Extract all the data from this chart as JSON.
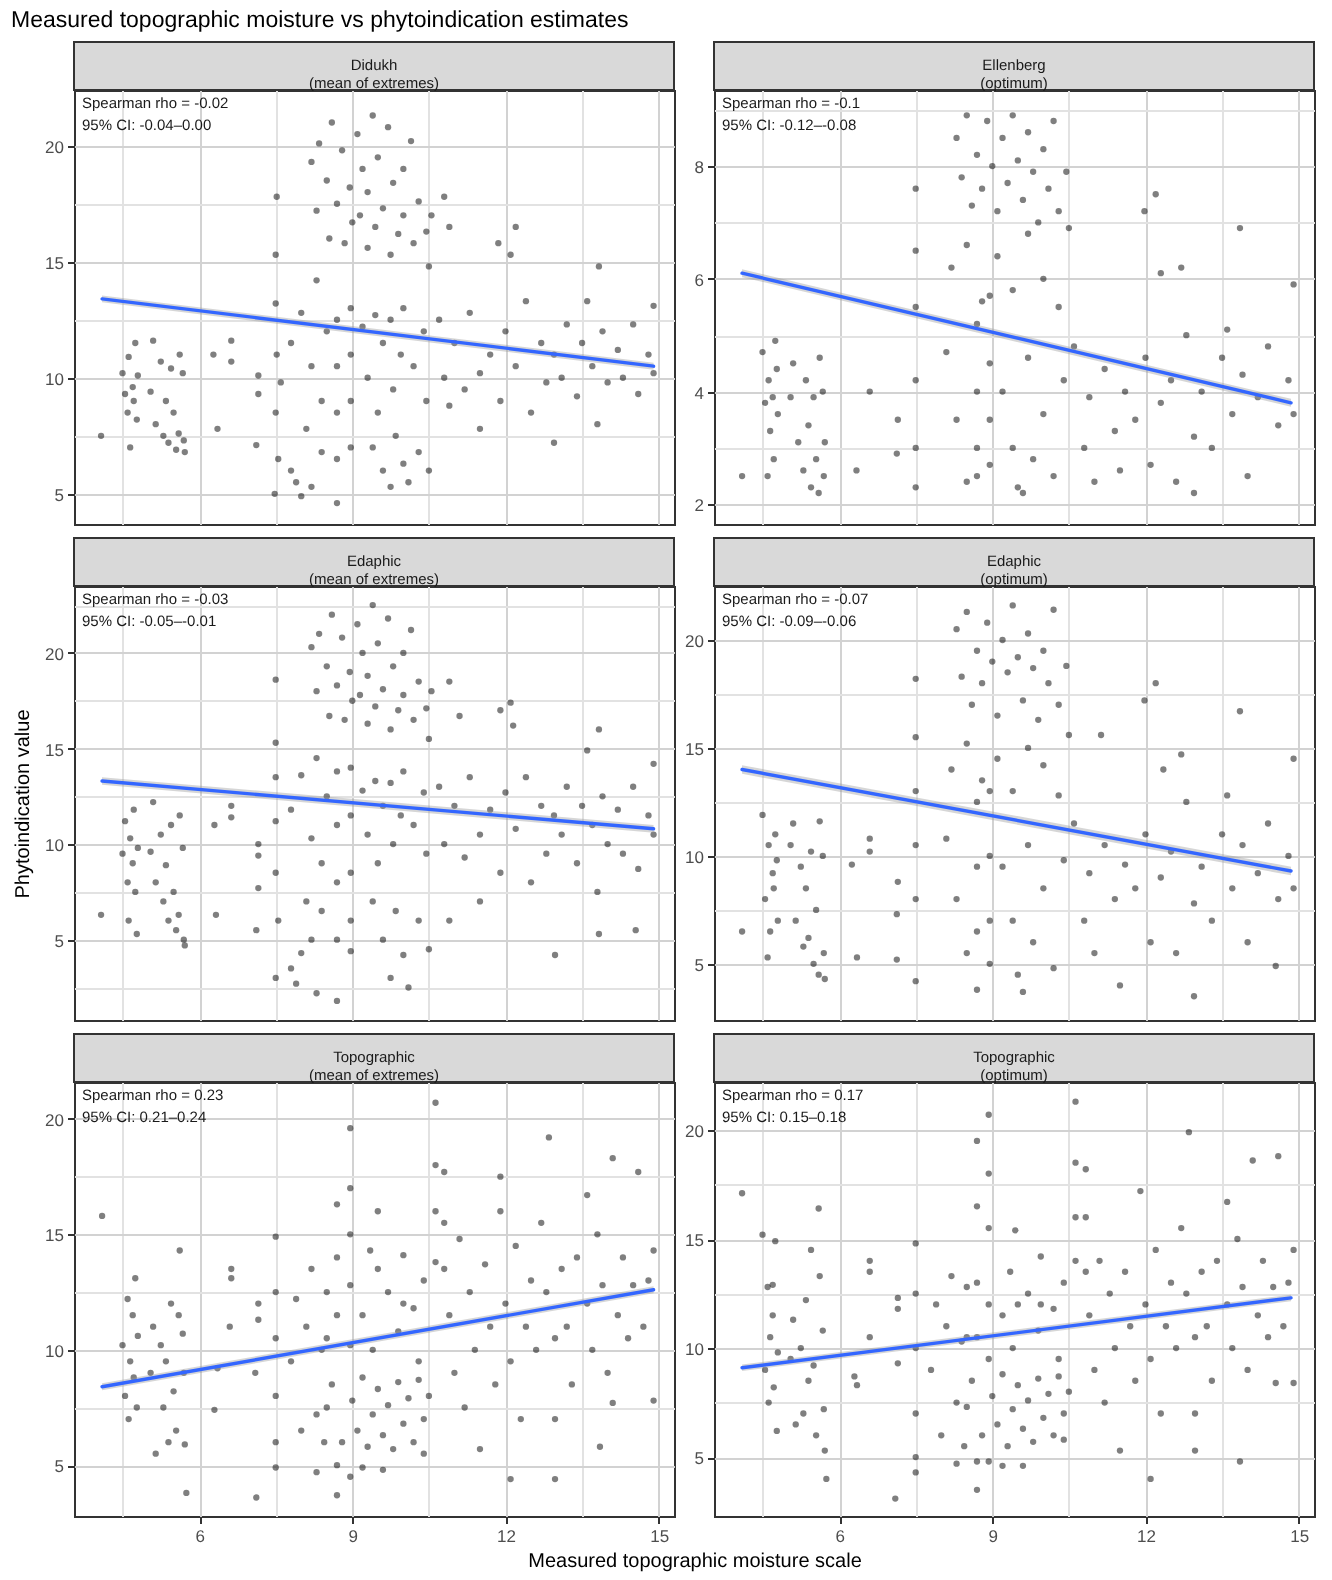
{
  "chart_data": [
    {
      "type": "scatter",
      "title": "Measured topographic moisture vs phytoindication estimates",
      "subtitle": "Didukh\n(mean of extremes)",
      "annotations": [
        "Spearman rho = -0.02",
        "95% CI: -0.04–0.00"
      ],
      "xlim": [
        3.55,
        15.3
      ],
      "xticks": [
        {
          "value": 4.5,
          "label": null
        },
        6,
        {
          "value": 7.5,
          "label": null
        },
        9,
        {
          "value": 10.5,
          "label": null
        },
        12,
        {
          "value": 13.5,
          "label": null
        },
        15
      ],
      "ylim": [
        3.7,
        22.4
      ],
      "yticks": [
        5,
        {
          "value": 7.5,
          "label": null
        },
        10,
        {
          "value": 12.5,
          "label": null
        },
        15,
        {
          "value": 17.5,
          "label": null
        },
        20
      ],
      "grid": true,
      "tick_labels": "y",
      "series": [
        {
          "type": "scatter",
          "color": "#000000",
          "marker": "circle",
          "x": [
            4.5,
            4.55,
            4.6,
            4.62,
            4.65,
            4.7,
            4.72,
            4.75,
            4.8,
            4.78,
            5.05,
            5.1,
            5.15,
            5.25,
            5.3,
            5.35,
            5.4,
            5.45,
            5.5,
            5.55,
            5.6,
            5.62,
            5.7,
            5.72,
            5.68,
            4.08,
            6.36,
            6.28,
            6.63,
            6.63,
            7.16,
            7.16,
            7.12,
            7.52,
            7.5,
            7.5,
            7.52,
            7.5,
            7.48,
            7.6,
            7.55,
            7.8,
            7.9,
            8.0,
            8.1,
            8.2,
            7.8,
            8.0,
            8.2,
            8.3,
            8.4,
            8.5,
            8.4,
            8.2,
            8.3,
            8.35,
            8.5,
            8.55,
            8.6,
            8.7,
            8.8,
            8.85,
            8.95,
            9.0,
            9.1,
            9.15,
            9.2,
            9.3,
            9.3,
            9.4,
            9.45,
            9.5,
            9.6,
            9.7,
            9.75,
            9.8,
            9.9,
            10.0,
            10.0,
            10.15,
            10.2,
            10.3,
            10.45,
            10.5,
            10.55,
            8.7,
            8.7,
            8.7,
            8.7,
            8.7,
            8.97,
            8.97,
            8.97,
            8.97,
            9.2,
            9.3,
            9.45,
            9.5,
            9.6,
            9.75,
            9.8,
            9.95,
            10.0,
            10.2,
            10.4,
            10.45,
            9.4,
            9.6,
            9.75,
            9.85,
            10.0,
            10.1,
            10.3,
            10.5,
            10.7,
            10.8,
            10.9,
            11.0,
            11.2,
            11.3,
            11.5,
            11.5,
            11.7,
            11.9,
            12.0,
            12.2,
            12.4,
            12.5,
            12.7,
            12.8,
            12.95,
            12.95,
            13.1,
            13.2,
            13.4,
            13.5,
            13.6,
            13.7,
            13.8,
            13.9,
            14.0,
            14.2,
            14.3,
            14.5,
            14.6,
            14.8,
            14.9,
            14.9,
            10.8,
            10.9,
            11.86,
            12.2,
            12.1,
            13.83
          ],
          "values": [
            10.2,
            9.3,
            8.5,
            10.9,
            7.0,
            9.6,
            9.0,
            11.5,
            10.1,
            8.2,
            9.4,
            11.6,
            8.0,
            10.7,
            7.5,
            9.0,
            7.2,
            10.4,
            8.5,
            6.9,
            7.6,
            11.0,
            7.3,
            6.8,
            10.2,
            7.5,
            7.8,
            11.0,
            11.6,
            10.7,
            10.1,
            9.3,
            7.1,
            17.8,
            15.3,
            13.2,
            11.0,
            8.5,
            5.0,
            9.8,
            6.5,
            6.0,
            5.5,
            4.9,
            7.8,
            5.3,
            11.5,
            12.8,
            10.5,
            14.2,
            9.0,
            12.0,
            6.8,
            19.3,
            17.2,
            20.1,
            18.5,
            16.0,
            21.0,
            17.5,
            19.8,
            15.8,
            18.2,
            16.7,
            20.5,
            17.0,
            19.0,
            15.6,
            18.0,
            21.3,
            16.5,
            19.5,
            17.3,
            20.8,
            15.3,
            18.4,
            16.2,
            19.0,
            17.0,
            20.2,
            15.8,
            17.6,
            16.3,
            14.8,
            17.0,
            12.5,
            10.5,
            8.5,
            6.5,
            4.6,
            13.0,
            11.0,
            9.0,
            7.0,
            12.2,
            10.0,
            12.7,
            8.5,
            11.5,
            12.5,
            9.5,
            11.0,
            13.0,
            10.5,
            12.0,
            9.0,
            7.0,
            6.0,
            5.3,
            7.5,
            6.3,
            5.5,
            6.8,
            6.0,
            12.5,
            10.0,
            8.8,
            11.5,
            9.5,
            12.8,
            10.2,
            7.8,
            11.0,
            9.0,
            12.0,
            10.5,
            13.3,
            8.5,
            11.5,
            9.8,
            11.0,
            7.2,
            10.0,
            12.3,
            9.2,
            11.5,
            13.3,
            10.5,
            8.0,
            12.0,
            9.8,
            11.2,
            10.0,
            12.3,
            9.3,
            11.0,
            13.1,
            10.2,
            17.8,
            16.5,
            15.8,
            16.5,
            15.3,
            14.8
          ]
        },
        {
          "type": "line",
          "color": "#3366ff",
          "x": [
            4.1,
            14.9
          ],
          "values": [
            13.4,
            10.5
          ],
          "lower": [
            13.25,
            10.35
          ],
          "upper": [
            13.55,
            10.65
          ]
        }
      ]
    },
    {
      "type": "scatter",
      "subtitle": "Ellenberg\n(optimum)",
      "annotations": [
        "Spearman rho = -0.1",
        "95% CI: -0.12–-0.08"
      ],
      "xlim": [
        3.55,
        15.3
      ],
      "xticks": [
        {
          "value": 4.5,
          "label": null
        },
        6,
        {
          "value": 7.5,
          "label": null
        },
        9,
        {
          "value": 10.5,
          "label": null
        },
        12,
        {
          "value": 13.5,
          "label": null
        },
        15
      ],
      "ylim": [
        1.65,
        9.35
      ],
      "yticks": [
        2,
        {
          "value": 3,
          "label": null
        },
        4,
        {
          "value": 5,
          "label": null
        },
        6,
        {
          "value": 7,
          "label": null
        },
        8,
        {
          "value": 9,
          "label": null
        }
      ],
      "grid": true,
      "tick_labels": "y",
      "series": [
        {
          "type": "scatter",
          "color": "#000000",
          "marker": "circle",
          "x": [
            4.5,
            4.55,
            4.6,
            4.62,
            4.65,
            4.7,
            4.72,
            4.75,
            4.8,
            4.78,
            5.05,
            5.1,
            5.2,
            5.3,
            5.35,
            5.4,
            5.45,
            5.5,
            5.55,
            5.6,
            5.62,
            5.7,
            5.72,
            5.68,
            4.1,
            6.34,
            6.6,
            7.15,
            7.13,
            7.5,
            7.5,
            7.5,
            7.5,
            7.5,
            7.5,
            8.3,
            8.4,
            8.5,
            8.6,
            8.7,
            8.8,
            8.9,
            9.0,
            9.1,
            9.2,
            9.3,
            9.4,
            9.5,
            9.6,
            9.7,
            9.8,
            9.9,
            10.0,
            10.1,
            10.2,
            10.3,
            10.45,
            10.5,
            8.2,
            8.5,
            8.8,
            9.1,
            9.4,
            9.7,
            10.0,
            10.3,
            8.7,
            8.7,
            8.7,
            8.7,
            8.95,
            8.95,
            8.95,
            8.95,
            8.1,
            8.3,
            8.5,
            9.2,
            9.4,
            9.5,
            9.6,
            9.7,
            9.8,
            10.0,
            10.2,
            10.4,
            10.6,
            10.8,
            10.9,
            11.0,
            11.2,
            11.4,
            11.5,
            11.6,
            11.8,
            12.0,
            12.1,
            12.3,
            12.5,
            12.6,
            12.8,
            12.95,
            12.95,
            13.1,
            13.3,
            13.5,
            13.6,
            13.7,
            13.9,
            14.0,
            14.2,
            14.4,
            14.6,
            14.8,
            14.9,
            14.9,
            11.98,
            12.2,
            12.7,
            13.85,
            12.3
          ],
          "values": [
            4.7,
            3.8,
            2.5,
            4.2,
            3.3,
            3.9,
            2.8,
            4.9,
            3.6,
            4.4,
            3.9,
            4.5,
            3.1,
            2.6,
            4.2,
            3.4,
            2.3,
            3.9,
            2.8,
            2.2,
            4.6,
            2.5,
            3.1,
            4.0,
            2.5,
            2.6,
            4.0,
            3.5,
            2.9,
            7.6,
            6.5,
            5.5,
            4.2,
            3.0,
            2.3,
            8.5,
            7.8,
            8.9,
            7.3,
            8.2,
            7.6,
            8.8,
            8.0,
            7.2,
            8.5,
            7.7,
            8.9,
            8.1,
            7.4,
            8.6,
            7.9,
            7.0,
            8.3,
            7.6,
            8.8,
            7.2,
            7.9,
            6.9,
            6.2,
            6.6,
            5.6,
            6.4,
            5.8,
            6.8,
            6.0,
            5.5,
            5.2,
            4.0,
            3.0,
            2.5,
            5.7,
            4.5,
            3.5,
            2.7,
            4.7,
            3.5,
            2.4,
            4.0,
            3.0,
            2.3,
            2.2,
            4.6,
            2.8,
            3.6,
            2.5,
            4.2,
            4.8,
            3.0,
            3.9,
            2.4,
            4.4,
            3.3,
            2.6,
            4.0,
            3.5,
            4.6,
            2.7,
            3.8,
            4.2,
            2.4,
            5.0,
            3.2,
            2.2,
            4.0,
            3.0,
            4.6,
            5.1,
            3.6,
            4.3,
            2.5,
            3.9,
            4.8,
            3.4,
            4.2,
            5.9,
            3.6,
            7.2,
            7.5,
            6.2,
            6.9,
            6.1
          ]
        },
        {
          "type": "line",
          "color": "#3366ff",
          "x": [
            4.1,
            14.85
          ],
          "values": [
            6.1,
            3.8
          ],
          "lower": [
            6.03,
            3.73
          ],
          "upper": [
            6.17,
            3.87
          ]
        }
      ]
    },
    {
      "type": "scatter",
      "subtitle": "Edaphic\n(mean of extremes)",
      "ylabel": "Phytoindication value",
      "annotations": [
        "Spearman rho = -0.03",
        "95% CI: -0.05–-0.01"
      ],
      "xlim": [
        3.55,
        15.3
      ],
      "xticks": [
        {
          "value": 4.5,
          "label": null
        },
        6,
        {
          "value": 7.5,
          "label": null
        },
        9,
        {
          "value": 10.5,
          "label": null
        },
        12,
        {
          "value": 13.5,
          "label": null
        },
        15
      ],
      "ylim": [
        0.8,
        23.5
      ],
      "yticks": [
        {
          "value": 2.5,
          "label": null
        },
        5,
        {
          "value": 7.5,
          "label": null
        },
        10,
        {
          "value": 12.5,
          "label": null
        },
        15,
        {
          "value": 17.5,
          "label": null
        },
        20,
        {
          "value": 22.5,
          "label": null
        }
      ],
      "grid": true,
      "tick_labels": "y",
      "series": [
        {
          "type": "scatter",
          "color": "#000000",
          "marker": "circle",
          "x": [
            4.5,
            4.55,
            4.6,
            4.62,
            4.65,
            4.7,
            4.72,
            4.75,
            4.8,
            4.78,
            5.05,
            5.1,
            5.15,
            5.25,
            5.3,
            5.35,
            5.4,
            5.45,
            5.5,
            5.55,
            5.6,
            5.62,
            5.7,
            5.72,
            5.68,
            4.08,
            6.33,
            6.3,
            6.63,
            6.63,
            7.16,
            7.16,
            7.12,
            7.16,
            7.5,
            7.5,
            7.5,
            7.5,
            7.5,
            7.5,
            7.55,
            7.8,
            7.9,
            8.0,
            8.1,
            8.2,
            7.8,
            8.0,
            8.2,
            8.3,
            8.4,
            8.5,
            8.4,
            8.3,
            8.2,
            8.3,
            8.35,
            8.5,
            8.55,
            8.6,
            8.7,
            8.8,
            8.85,
            8.95,
            9.0,
            9.1,
            9.15,
            9.2,
            9.3,
            9.3,
            9.4,
            9.45,
            9.5,
            9.6,
            9.7,
            9.75,
            9.8,
            9.9,
            10.0,
            10.0,
            10.15,
            10.2,
            10.3,
            10.45,
            10.5,
            10.55,
            8.7,
            8.7,
            8.7,
            8.7,
            8.7,
            8.97,
            8.97,
            8.97,
            8.97,
            8.97,
            9.2,
            9.3,
            9.45,
            9.5,
            9.6,
            9.75,
            9.8,
            9.95,
            10.0,
            10.2,
            10.4,
            10.45,
            9.4,
            9.6,
            9.75,
            9.85,
            10.0,
            10.1,
            10.3,
            10.5,
            10.7,
            10.8,
            10.9,
            11.0,
            11.2,
            11.3,
            11.5,
            11.5,
            11.7,
            11.9,
            12.0,
            12.2,
            12.4,
            12.5,
            12.7,
            12.8,
            12.95,
            12.97,
            13.1,
            13.2,
            13.4,
            13.5,
            13.6,
            13.7,
            13.8,
            13.9,
            14.0,
            14.2,
            14.3,
            14.5,
            14.6,
            14.8,
            14.9,
            14.9,
            13.83,
            14.55,
            10.9,
            11.1,
            11.9,
            12.1,
            12.15,
            13.83
          ],
          "values": [
            9.5,
            11.2,
            8.0,
            6.0,
            10.3,
            9.0,
            11.8,
            7.5,
            9.8,
            5.3,
            9.6,
            12.2,
            8.0,
            10.5,
            7.0,
            8.9,
            6.0,
            11.0,
            7.5,
            5.5,
            6.3,
            11.5,
            5.0,
            4.7,
            9.8,
            6.3,
            6.3,
            11.0,
            12.0,
            11.4,
            10.0,
            9.4,
            5.5,
            7.7,
            18.6,
            15.3,
            13.5,
            11.2,
            8.5,
            3.0,
            6.0,
            3.5,
            2.7,
            4.3,
            7.0,
            5.0,
            11.8,
            13.6,
            10.3,
            14.5,
            9.0,
            12.5,
            6.5,
            2.2,
            20.3,
            18.0,
            21.0,
            19.3,
            16.7,
            22.0,
            18.3,
            20.8,
            16.5,
            19.0,
            17.5,
            21.5,
            17.8,
            20.0,
            16.3,
            18.8,
            22.5,
            17.2,
            20.5,
            18.1,
            21.8,
            16.0,
            19.3,
            17.0,
            20.0,
            17.8,
            21.2,
            16.5,
            18.5,
            17.1,
            15.5,
            18.0,
            13.8,
            11.0,
            8.0,
            5.0,
            1.8,
            14.0,
            11.5,
            8.5,
            6.0,
            4.4,
            12.8,
            10.5,
            13.3,
            9.0,
            12.0,
            13.2,
            10.0,
            11.5,
            13.8,
            11.0,
            12.7,
            9.5,
            7.0,
            5.0,
            3.0,
            6.5,
            4.2,
            2.5,
            6.0,
            4.5,
            13.0,
            10.0,
            6.0,
            12.0,
            9.3,
            13.5,
            10.5,
            7.0,
            11.8,
            8.5,
            12.7,
            10.8,
            13.5,
            8.0,
            12.0,
            9.5,
            11.5,
            4.2,
            10.5,
            13.0,
            9.0,
            12.0,
            14.9,
            11.0,
            7.5,
            12.5,
            10.0,
            11.8,
            9.5,
            13.0,
            8.7,
            11.5,
            14.2,
            10.5,
            5.3,
            5.5,
            18.5,
            16.7,
            17.0,
            17.4,
            16.2,
            16.0
          ]
        },
        {
          "type": "line",
          "color": "#3366ff",
          "x": [
            4.1,
            14.9
          ],
          "values": [
            13.3,
            10.8
          ],
          "lower": [
            13.1,
            10.6
          ],
          "upper": [
            13.5,
            11.0
          ]
        }
      ]
    },
    {
      "type": "scatter",
      "subtitle": "Edaphic\n(optimum)",
      "annotations": [
        "Spearman rho = -0.07",
        "95% CI: -0.09–-0.06"
      ],
      "xlim": [
        3.55,
        15.3
      ],
      "xticks": [
        {
          "value": 4.5,
          "label": null
        },
        6,
        {
          "value": 7.5,
          "label": null
        },
        9,
        {
          "value": 10.5,
          "label": null
        },
        12,
        {
          "value": 13.5,
          "label": null
        },
        15
      ],
      "ylim": [
        2.4,
        22.5
      ],
      "yticks": [
        5,
        {
          "value": 7.5,
          "label": null
        },
        10,
        {
          "value": 12.5,
          "label": null
        },
        15,
        {
          "value": 17.5,
          "label": null
        },
        20
      ],
      "grid": true,
      "tick_labels": "y",
      "series": [
        {
          "type": "scatter",
          "color": "#000000",
          "marker": "circle",
          "x": [
            4.5,
            4.55,
            4.6,
            4.62,
            4.65,
            4.7,
            4.72,
            4.75,
            4.8,
            4.78,
            5.05,
            5.1,
            5.15,
            5.25,
            5.3,
            5.35,
            5.4,
            5.45,
            5.5,
            5.55,
            5.6,
            5.62,
            5.7,
            5.72,
            5.68,
            4.1,
            6.35,
            6.25,
            6.6,
            6.6,
            7.15,
            7.13,
            7.13,
            7.5,
            7.5,
            7.5,
            7.5,
            7.5,
            7.5,
            8.3,
            8.4,
            8.5,
            8.6,
            8.7,
            8.8,
            8.9,
            9.0,
            9.1,
            9.2,
            9.3,
            9.4,
            9.5,
            9.6,
            9.7,
            9.8,
            9.9,
            10.0,
            10.1,
            10.2,
            10.3,
            10.45,
            10.5,
            8.2,
            8.5,
            8.8,
            9.1,
            9.4,
            9.7,
            10.0,
            10.3,
            8.7,
            8.7,
            8.7,
            8.7,
            8.95,
            8.95,
            8.95,
            8.95,
            8.1,
            8.3,
            8.5,
            9.2,
            9.4,
            9.5,
            9.6,
            9.7,
            9.8,
            10.0,
            10.2,
            10.4,
            10.6,
            10.8,
            10.9,
            11.0,
            11.2,
            11.4,
            11.5,
            11.6,
            11.8,
            12.0,
            12.1,
            12.3,
            12.5,
            12.6,
            12.8,
            12.95,
            12.95,
            13.1,
            13.3,
            13.5,
            13.6,
            13.7,
            13.9,
            14.0,
            14.2,
            14.4,
            14.6,
            14.8,
            14.9,
            14.9,
            14.55,
            11.98,
            12.2,
            12.7,
            13.85,
            12.35,
            11.13
          ],
          "values": [
            11.9,
            8.0,
            5.3,
            10.5,
            6.5,
            9.2,
            8.5,
            11.0,
            7.0,
            9.8,
            10.5,
            11.5,
            7.0,
            9.5,
            5.8,
            8.5,
            6.2,
            10.2,
            5.0,
            7.5,
            4.5,
            11.6,
            5.5,
            4.3,
            10.0,
            6.5,
            5.3,
            9.6,
            10.8,
            10.2,
            8.8,
            7.3,
            5.2,
            18.2,
            15.5,
            13.0,
            10.5,
            8.0,
            4.2,
            20.5,
            18.3,
            21.3,
            17.0,
            19.5,
            18.0,
            20.8,
            19.0,
            16.5,
            20.0,
            18.5,
            21.6,
            19.2,
            17.2,
            20.3,
            18.7,
            16.3,
            19.5,
            18.0,
            21.4,
            17.0,
            18.8,
            15.6,
            14.0,
            15.2,
            13.5,
            14.5,
            13.0,
            15.0,
            14.2,
            12.8,
            12.5,
            9.5,
            6.5,
            3.8,
            13.0,
            10.0,
            7.0,
            5.0,
            10.8,
            8.0,
            5.5,
            9.5,
            7.0,
            4.5,
            3.7,
            10.5,
            6.0,
            8.5,
            4.8,
            9.8,
            11.5,
            7.0,
            9.2,
            5.5,
            10.5,
            8.0,
            4.0,
            9.6,
            8.5,
            11.0,
            6.0,
            9.0,
            10.2,
            5.5,
            12.5,
            7.8,
            3.5,
            9.5,
            7.0,
            11.0,
            12.8,
            8.5,
            10.5,
            6.0,
            9.2,
            11.5,
            8.0,
            10.0,
            14.5,
            8.5,
            4.9,
            17.2,
            18.0,
            14.7,
            16.7,
            14.0,
            15.6
          ]
        },
        {
          "type": "line",
          "color": "#3366ff",
          "x": [
            4.1,
            14.85
          ],
          "values": [
            14.0,
            9.3
          ],
          "lower": [
            13.8,
            9.1
          ],
          "upper": [
            14.2,
            9.5
          ]
        }
      ]
    },
    {
      "type": "scatter",
      "subtitle": "Topographic\n(mean of extremes)",
      "xlabel": "Measured topographic moisture scale",
      "annotations": [
        "Spearman rho = 0.23",
        "95% CI: 0.21–0.24"
      ],
      "xlim": [
        3.55,
        15.3
      ],
      "xticks": [
        {
          "value": 4.5,
          "label": null
        },
        6,
        {
          "value": 7.5,
          "label": null
        },
        9,
        {
          "value": 10.5,
          "label": null
        },
        12,
        {
          "value": 13.5,
          "label": null
        },
        15
      ],
      "ylim": [
        2.8,
        21.6
      ],
      "yticks": [
        5,
        {
          "value": 7.5,
          "label": null
        },
        10,
        {
          "value": 12.5,
          "label": null
        },
        15,
        {
          "value": 17.5,
          "label": null
        },
        20
      ],
      "grid": true,
      "series": [
        {
          "type": "scatter",
          "color": "#000000",
          "marker": "circle",
          "x": [
            4.5,
            4.55,
            4.6,
            4.62,
            4.65,
            4.7,
            4.72,
            4.75,
            4.8,
            4.78,
            5.05,
            5.1,
            5.15,
            5.25,
            5.3,
            5.35,
            5.4,
            5.45,
            5.5,
            5.55,
            5.6,
            5.62,
            5.7,
            5.72,
            5.68,
            5.75,
            4.1,
            6.36,
            6.3,
            6.63,
            6.63,
            6.6,
            7.12,
            7.16,
            7.16,
            7.1,
            7.5,
            7.5,
            7.5,
            7.5,
            7.5,
            7.5,
            7.8,
            7.9,
            8.0,
            8.1,
            8.2,
            8.3,
            8.4,
            8.5,
            8.45,
            8.3,
            8.5,
            8.6,
            8.8,
            9.0,
            9.1,
            9.2,
            9.3,
            9.4,
            9.5,
            9.6,
            9.7,
            9.8,
            9.9,
            10.0,
            10.1,
            10.2,
            10.3,
            10.4,
            10.5,
            10.4,
            9.2,
            9.6,
            8.7,
            8.7,
            8.7,
            8.7,
            8.7,
            8.96,
            8.96,
            8.96,
            8.96,
            8.96,
            8.96,
            9.5,
            9.5,
            9.35,
            10.0,
            10.0,
            10.63,
            10.63,
            10.63,
            10.63,
            10.8,
            10.8,
            10.8,
            8.5,
            9.2,
            9.4,
            9.7,
            9.9,
            10.2,
            10.4,
            10.3,
            10.9,
            11.0,
            11.1,
            11.2,
            11.3,
            11.4,
            11.5,
            11.6,
            11.7,
            11.8,
            11.9,
            12.0,
            12.1,
            12.2,
            12.3,
            12.4,
            12.5,
            12.6,
            12.7,
            12.8,
            12.85,
            12.97,
            12.97,
            12.97,
            13.1,
            13.2,
            13.3,
            13.4,
            13.6,
            13.6,
            13.7,
            13.8,
            13.9,
            14.0,
            14.1,
            14.2,
            14.3,
            14.4,
            14.5,
            14.6,
            14.7,
            14.8,
            14.9,
            14.9,
            13.85,
            12.1,
            11.9,
            14.1
          ],
          "values": [
            10.2,
            8.0,
            12.2,
            7.0,
            9.5,
            11.5,
            8.8,
            13.1,
            10.6,
            7.5,
            9.0,
            11.0,
            5.5,
            10.2,
            7.5,
            9.5,
            6.0,
            12.0,
            8.2,
            6.5,
            11.5,
            14.3,
            9.0,
            5.9,
            10.7,
            3.8,
            15.8,
            9.2,
            7.4,
            13.5,
            13.1,
            11.0,
            3.6,
            12.0,
            11.3,
            9.0,
            14.9,
            12.5,
            10.5,
            8.0,
            6.0,
            4.9,
            9.5,
            12.2,
            6.5,
            11.0,
            13.5,
            7.2,
            10.0,
            12.5,
            6.0,
            4.7,
            7.5,
            8.5,
            6.0,
            7.8,
            6.5,
            8.8,
            5.8,
            7.2,
            8.3,
            6.3,
            7.6,
            5.7,
            8.6,
            6.8,
            7.9,
            6.0,
            8.7,
            7.0,
            8.0,
            5.5,
            4.9,
            4.8,
            16.3,
            14.0,
            11.5,
            5.0,
            3.7,
            19.6,
            17.0,
            15.0,
            12.8,
            10.2,
            4.5,
            16.0,
            13.5,
            14.3,
            14.1,
            12.0,
            20.7,
            18.0,
            16.0,
            13.8,
            17.7,
            15.5,
            13.5,
            10.5,
            11.5,
            10.0,
            12.5,
            10.8,
            11.8,
            13.0,
            9.5,
            11.5,
            9.0,
            14.8,
            7.5,
            12.5,
            10.0,
            5.7,
            13.7,
            11.0,
            8.5,
            16.0,
            12.0,
            9.5,
            14.5,
            7.0,
            11.0,
            13.0,
            10.0,
            15.5,
            12.5,
            19.2,
            10.5,
            7.0,
            4.4,
            13.5,
            11.0,
            8.5,
            14.0,
            16.7,
            12.0,
            10.0,
            15.0,
            12.8,
            9.0,
            18.3,
            11.5,
            14.0,
            10.5,
            12.8,
            17.7,
            11.0,
            13.0,
            14.3,
            7.8,
            5.8,
            4.4,
            17.5,
            7.7
          ]
        },
        {
          "type": "line",
          "color": "#3366ff",
          "x": [
            4.1,
            14.9
          ],
          "values": [
            8.4,
            12.6
          ],
          "lower": [
            8.25,
            12.45
          ],
          "upper": [
            8.55,
            12.75
          ]
        }
      ]
    },
    {
      "type": "scatter",
      "subtitle": "Topographic\n(optimum)",
      "annotations": [
        "Spearman rho = 0.17",
        "95% CI: 0.15–0.18"
      ],
      "xlim": [
        3.55,
        15.3
      ],
      "xticks": [
        {
          "value": 4.5,
          "label": null
        },
        6,
        {
          "value": 7.5,
          "label": null
        },
        9,
        {
          "value": 10.5,
          "label": null
        },
        12,
        {
          "value": 13.5,
          "label": null
        },
        15
      ],
      "ylim": [
        2.3,
        22.2
      ],
      "yticks": [
        5,
        {
          "value": 7.5,
          "label": null
        },
        10,
        {
          "value": 12.5,
          "label": null
        },
        15,
        {
          "value": 17.5,
          "label": null
        },
        20
      ],
      "grid": true,
      "series": [
        {
          "type": "scatter",
          "color": "#000000",
          "marker": "circle",
          "x": [
            4.5,
            4.55,
            4.6,
            4.62,
            4.65,
            4.7,
            4.72,
            4.75,
            4.8,
            4.78,
            4.7,
            5.05,
            5.1,
            5.15,
            5.25,
            5.3,
            5.35,
            5.4,
            5.45,
            5.5,
            5.55,
            5.6,
            5.62,
            5.7,
            5.75,
            5.68,
            5.72,
            4.1,
            6.35,
            6.3,
            6.6,
            6.6,
            6.6,
            7.1,
            7.15,
            7.15,
            7.15,
            7.5,
            7.5,
            7.5,
            7.5,
            7.5,
            7.5,
            7.8,
            7.9,
            8.0,
            8.1,
            8.2,
            8.3,
            8.4,
            8.5,
            8.45,
            8.3,
            8.5,
            8.6,
            8.8,
            9.0,
            9.1,
            9.2,
            9.3,
            9.4,
            9.5,
            9.6,
            9.7,
            9.8,
            9.9,
            10.0,
            10.1,
            10.2,
            10.3,
            10.4,
            10.5,
            10.4,
            9.2,
            9.6,
            8.7,
            8.7,
            8.7,
            8.7,
            8.7,
            8.7,
            8.93,
            8.93,
            8.93,
            8.93,
            8.93,
            8.93,
            9.45,
            9.35,
            9.5,
            9.95,
            9.95,
            10.63,
            10.63,
            10.63,
            10.63,
            10.83,
            10.83,
            10.83,
            8.5,
            9.2,
            9.4,
            9.7,
            9.9,
            10.2,
            10.4,
            10.3,
            10.9,
            11.0,
            11.1,
            11.2,
            11.3,
            11.4,
            11.5,
            11.6,
            11.7,
            11.8,
            11.9,
            12.0,
            12.1,
            12.2,
            12.3,
            12.4,
            12.5,
            12.6,
            12.7,
            12.8,
            12.85,
            12.97,
            12.97,
            12.97,
            13.1,
            13.2,
            13.3,
            13.4,
            13.6,
            13.6,
            13.7,
            13.8,
            13.9,
            14.0,
            14.1,
            14.2,
            14.3,
            14.4,
            14.5,
            14.6,
            14.7,
            14.8,
            14.9,
            14.9,
            13.85,
            12.1,
            14.55
          ],
          "values": [
            15.2,
            9.0,
            12.8,
            7.5,
            10.5,
            11.5,
            8.2,
            14.9,
            9.8,
            6.2,
            12.9,
            9.5,
            11.3,
            6.5,
            10.0,
            7.0,
            12.2,
            8.5,
            14.5,
            9.2,
            6.0,
            16.4,
            13.3,
            7.2,
            4.0,
            10.8,
            5.3,
            17.1,
            8.3,
            8.7,
            14.0,
            13.5,
            10.5,
            3.1,
            12.3,
            11.8,
            9.3,
            14.8,
            12.5,
            10.0,
            7.0,
            5.0,
            4.3,
            9.0,
            12.0,
            6.0,
            11.0,
            13.3,
            7.5,
            10.3,
            12.8,
            5.5,
            4.7,
            7.3,
            8.5,
            6.0,
            7.8,
            6.5,
            8.8,
            5.5,
            7.2,
            8.3,
            6.3,
            7.6,
            5.7,
            8.6,
            6.8,
            7.9,
            6.0,
            8.7,
            7.0,
            8.0,
            5.8,
            4.6,
            4.6,
            19.5,
            16.5,
            13.0,
            10.5,
            4.8,
            3.5,
            20.7,
            18.0,
            15.5,
            12.0,
            9.5,
            4.8,
            15.4,
            13.5,
            12.0,
            14.2,
            12.0,
            21.3,
            18.5,
            16.0,
            14.0,
            18.2,
            16.0,
            13.5,
            10.5,
            11.5,
            10.0,
            12.5,
            10.8,
            11.8,
            13.0,
            9.5,
            11.5,
            9.0,
            14.0,
            7.5,
            12.5,
            10.0,
            5.3,
            13.5,
            11.0,
            8.5,
            17.2,
            12.0,
            9.5,
            14.5,
            7.0,
            11.0,
            13.0,
            10.0,
            15.5,
            12.5,
            19.9,
            10.5,
            7.0,
            5.3,
            13.5,
            11.0,
            8.5,
            14.0,
            16.7,
            12.0,
            10.0,
            15.0,
            12.8,
            9.0,
            18.6,
            11.5,
            14.0,
            10.5,
            12.8,
            18.8,
            11.0,
            13.0,
            14.5,
            8.4,
            4.8,
            4.0,
            8.4
          ]
        },
        {
          "type": "line",
          "color": "#3366ff",
          "x": [
            4.1,
            14.85
          ],
          "values": [
            9.1,
            12.3
          ],
          "lower": [
            8.95,
            12.15
          ],
          "upper": [
            9.25,
            12.45
          ]
        }
      ]
    }
  ]
}
